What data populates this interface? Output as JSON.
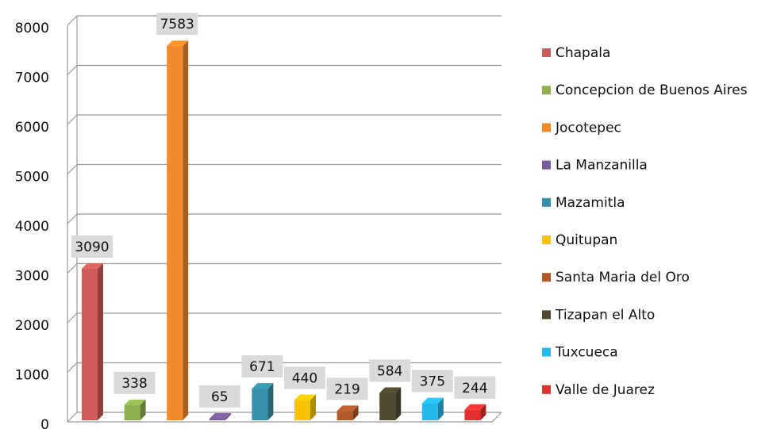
{
  "chart_data": {
    "type": "bar3d",
    "series": [
      {
        "name": "Chapala",
        "color": "#cd5b58",
        "values": [
          3090
        ]
      },
      {
        "name": "Concepcion de Buenos Aires",
        "color": "#8fb04f",
        "values": [
          338
        ]
      },
      {
        "name": "Jocotepec",
        "color": "#f0892a",
        "values": [
          7583
        ]
      },
      {
        "name": "La Manzanilla",
        "color": "#7a5a9c",
        "values": [
          65
        ]
      },
      {
        "name": "Mazamitla",
        "color": "#3590a8",
        "values": [
          671
        ]
      },
      {
        "name": "Quitupan",
        "color": "#f7c300",
        "values": [
          440
        ]
      },
      {
        "name": "Santa Maria del Oro",
        "color": "#b0592a",
        "values": [
          219
        ]
      },
      {
        "name": "Tizapan el Alto",
        "color": "#4f4a2f",
        "values": [
          584
        ]
      },
      {
        "name": "Tuxcueca",
        "color": "#25b8ec",
        "values": [
          375
        ]
      },
      {
        "name": "Valle de Juarez",
        "color": "#e52f2f",
        "values": [
          244
        ]
      }
    ],
    "ylim": [
      0,
      8000
    ],
    "yticks": [
      0,
      1000,
      2000,
      3000,
      4000,
      5000,
      6000,
      7000,
      8000
    ],
    "grid": true,
    "legend": "right"
  }
}
